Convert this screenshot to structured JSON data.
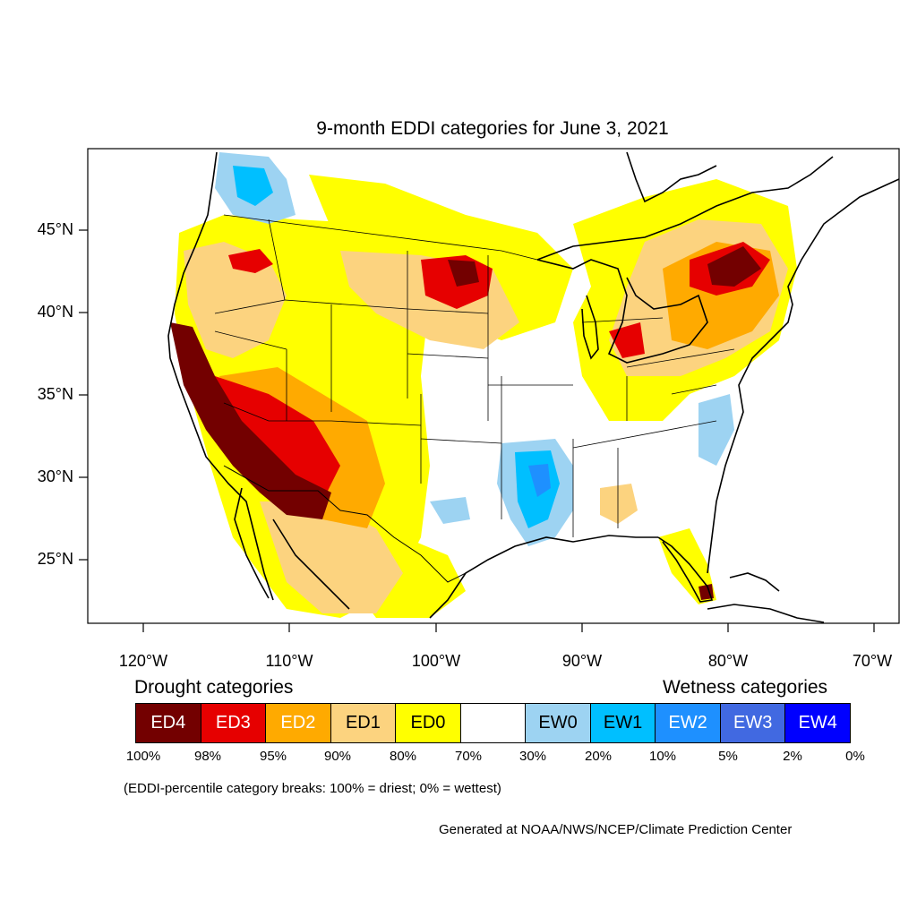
{
  "title": "9-month EDDI categories for June 3, 2021",
  "latitude_labels": [
    "45°N",
    "40°N",
    "35°N",
    "30°N",
    "25°N"
  ],
  "longitude_labels": [
    "120°W",
    "110°W",
    "100°W",
    "90°W",
    "80°W",
    "70°W"
  ],
  "legend": {
    "drought_title": "Drought categories",
    "wetness_title": "Wetness categories",
    "categories": [
      {
        "label": "ED4",
        "color": "#730000",
        "text_color": "#ffffff"
      },
      {
        "label": "ED3",
        "color": "#e60000",
        "text_color": "#ffffff"
      },
      {
        "label": "ED2",
        "color": "#ffaa00",
        "text_color": "#ffffff"
      },
      {
        "label": "ED1",
        "color": "#fcd37f",
        "text_color": "#000000"
      },
      {
        "label": "ED0",
        "color": "#ffff00",
        "text_color": "#000000"
      },
      {
        "label": "",
        "color": "#ffffff",
        "text_color": "#000000"
      },
      {
        "label": "EW0",
        "color": "#9dd3f2",
        "text_color": "#000000"
      },
      {
        "label": "EW1",
        "color": "#00bfff",
        "text_color": "#000000"
      },
      {
        "label": "EW2",
        "color": "#1e90ff",
        "text_color": "#ffffff"
      },
      {
        "label": "EW3",
        "color": "#4169e1",
        "text_color": "#ffffff"
      },
      {
        "label": "EW4",
        "color": "#0000ff",
        "text_color": "#ffffff"
      }
    ],
    "percentile_breaks": [
      "100%",
      "98%",
      "95%",
      "90%",
      "80%",
      "70%",
      "30%",
      "20%",
      "10%",
      "5%",
      "2%",
      "0%"
    ]
  },
  "break_note": "(EDDI-percentile category breaks: 100% = driest; 0% = wettest)",
  "credit": "Generated at NOAA/NWS/NCEP/Climate Prediction Center"
}
